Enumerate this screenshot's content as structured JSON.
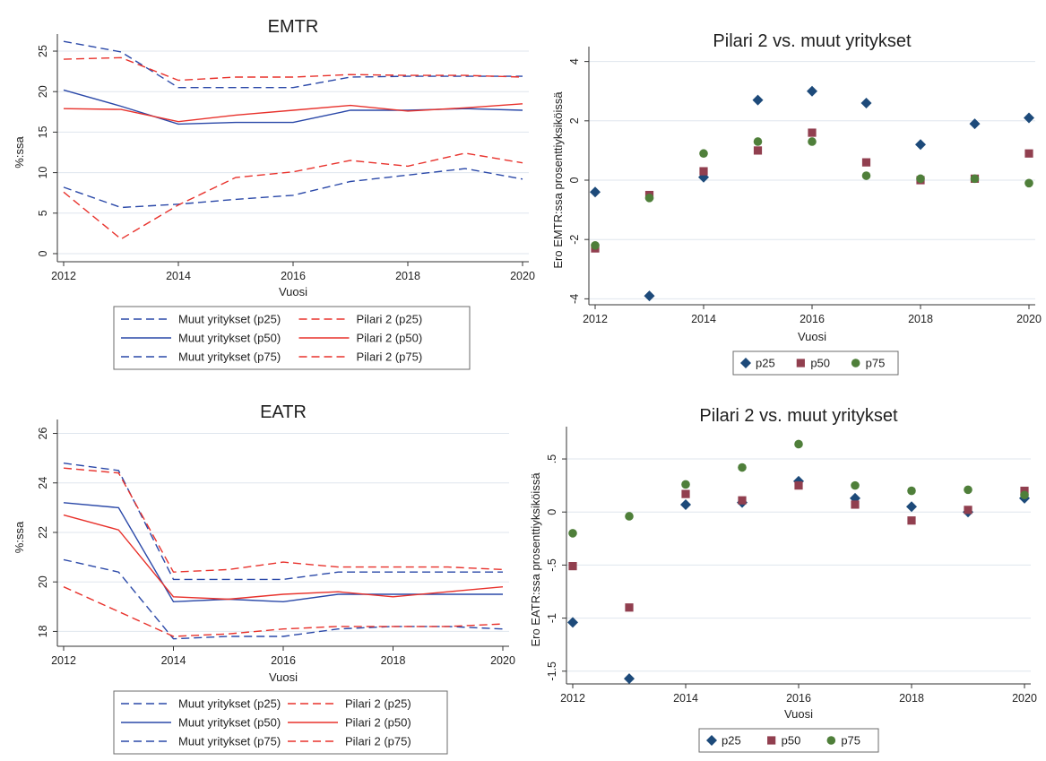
{
  "chart_data": [
    {
      "type": "line",
      "title": "EMTR",
      "xlabel": "Vuosi",
      "ylabel": "%:ssa",
      "xlim": [
        2012,
        2020
      ],
      "ylim": [
        -1,
        26
      ],
      "xticks": [
        2012,
        2014,
        2016,
        2018,
        2020
      ],
      "yticks": [
        0,
        5,
        10,
        15,
        20,
        25
      ],
      "grid": true,
      "legend_position": "bottom",
      "x": [
        2012,
        2013,
        2014,
        2015,
        2016,
        2017,
        2018,
        2019,
        2020
      ],
      "series": [
        {
          "name": "Muut yritykset (p25)",
          "color": "#2a48a8",
          "style": "dashed",
          "values": [
            8.2,
            5.7,
            6.1,
            6.7,
            7.2,
            8.9,
            9.7,
            10.5,
            9.2
          ]
        },
        {
          "name": "Pilari 2 (p25)",
          "color": "#e8322c",
          "style": "dashed",
          "values": [
            7.6,
            1.8,
            6.0,
            9.4,
            10.1,
            11.5,
            10.8,
            12.4,
            11.2
          ]
        },
        {
          "name": "Muut yritykset (p50)",
          "color": "#2a48a8",
          "style": "solid",
          "values": [
            20.2,
            18.2,
            16.0,
            16.2,
            16.2,
            17.7,
            17.7,
            17.9,
            17.7
          ]
        },
        {
          "name": "Pilari 2 (p50)",
          "color": "#e8322c",
          "style": "solid",
          "values": [
            17.9,
            17.8,
            16.3,
            17.1,
            17.7,
            18.3,
            17.6,
            18.0,
            18.5
          ]
        },
        {
          "name": "Muut yritykset (p75)",
          "color": "#2a48a8",
          "style": "dashed",
          "values": [
            26.2,
            24.9,
            20.5,
            20.5,
            20.5,
            21.8,
            21.9,
            21.9,
            21.9
          ]
        },
        {
          "name": "Pilari 2 (p75)",
          "color": "#e8322c",
          "style": "dashed",
          "values": [
            24.0,
            24.2,
            21.4,
            21.8,
            21.8,
            22.1,
            22.0,
            22.0,
            21.8
          ]
        }
      ]
    },
    {
      "type": "scatter",
      "title": "Pilari 2 vs. muut yritykset",
      "xlabel": "Vuosi",
      "ylabel": "Ero EMTR:ssa prosenttiyksiköissä",
      "xlim": [
        2012,
        2020
      ],
      "ylim": [
        -4.2,
        4.2
      ],
      "xticks": [
        2012,
        2014,
        2016,
        2018,
        2020
      ],
      "yticks": [
        -4,
        -2,
        0,
        2,
        4
      ],
      "grid": true,
      "legend_position": "bottom",
      "x": [
        2012,
        2013,
        2014,
        2015,
        2016,
        2017,
        2018,
        2019,
        2020
      ],
      "series": [
        {
          "name": "p25",
          "marker": "diamond",
          "color": "#1d4a7a",
          "values": [
            -0.4,
            -3.9,
            0.1,
            2.7,
            3.0,
            2.6,
            1.2,
            1.9,
            2.1
          ]
        },
        {
          "name": "p50",
          "marker": "square",
          "color": "#913f4f",
          "values": [
            -2.3,
            -0.5,
            0.3,
            1.0,
            1.6,
            0.6,
            0.0,
            0.05,
            0.9
          ]
        },
        {
          "name": "p75",
          "marker": "circle",
          "color": "#4f7f3a",
          "values": [
            -2.2,
            -0.6,
            0.9,
            1.3,
            1.3,
            0.15,
            0.05,
            0.05,
            -0.1
          ]
        }
      ]
    },
    {
      "type": "line",
      "title": "EATR",
      "xlabel": "Vuosi",
      "ylabel": "%:ssa",
      "xlim": [
        2012,
        2020
      ],
      "ylim": [
        17.4,
        26.2
      ],
      "xticks": [
        2012,
        2014,
        2016,
        2018,
        2020
      ],
      "yticks": [
        18,
        20,
        22,
        24,
        26
      ],
      "grid": true,
      "legend_position": "bottom",
      "x": [
        2012,
        2013,
        2014,
        2015,
        2016,
        2017,
        2018,
        2019,
        2020
      ],
      "series": [
        {
          "name": "Muut yritykset (p25)",
          "color": "#2a48a8",
          "style": "dashed",
          "values": [
            20.9,
            20.4,
            17.7,
            17.8,
            17.8,
            18.1,
            18.2,
            18.2,
            18.1
          ]
        },
        {
          "name": "Pilari 2 (p25)",
          "color": "#e8322c",
          "style": "dashed",
          "values": [
            19.8,
            18.8,
            17.8,
            17.9,
            18.1,
            18.2,
            18.2,
            18.2,
            18.3
          ]
        },
        {
          "name": "Muut yritykset (p50)",
          "color": "#2a48a8",
          "style": "solid",
          "values": [
            23.2,
            23.0,
            19.2,
            19.3,
            19.2,
            19.5,
            19.5,
            19.5,
            19.5
          ]
        },
        {
          "name": "Pilari 2 (p50)",
          "color": "#e8322c",
          "style": "solid",
          "values": [
            22.7,
            22.1,
            19.4,
            19.3,
            19.5,
            19.6,
            19.4,
            19.6,
            19.8
          ]
        },
        {
          "name": "Muut yritykset (p75)",
          "color": "#2a48a8",
          "style": "dashed",
          "values": [
            24.8,
            24.5,
            20.1,
            20.1,
            20.1,
            20.4,
            20.4,
            20.4,
            20.4
          ]
        },
        {
          "name": "Pilari 2 (p75)",
          "color": "#e8322c",
          "style": "dashed",
          "values": [
            24.6,
            24.4,
            20.4,
            20.5,
            20.8,
            20.6,
            20.6,
            20.6,
            20.5
          ]
        }
      ]
    },
    {
      "type": "scatter",
      "title": "Pilari 2 vs. muut yritykset",
      "xlabel": "Vuosi",
      "ylabel": "Ero EATR:ssa prosenttiyksiköissä",
      "xlim": [
        2012,
        2020
      ],
      "ylim": [
        -1.62,
        0.72
      ],
      "xticks": [
        2012,
        2014,
        2016,
        2018,
        2020
      ],
      "yticks": [
        -1.5,
        -1,
        -0.5,
        0,
        0.5
      ],
      "ytick_labels": [
        "-1.5",
        "-1",
        "-.5",
        "0",
        ".5"
      ],
      "grid": true,
      "legend_position": "bottom",
      "x": [
        2012,
        2013,
        2014,
        2015,
        2016,
        2017,
        2018,
        2019,
        2020
      ],
      "series": [
        {
          "name": "p25",
          "marker": "diamond",
          "color": "#1d4a7a",
          "values": [
            -1.04,
            -1.57,
            0.07,
            0.09,
            0.29,
            0.13,
            0.05,
            0.0,
            0.13
          ]
        },
        {
          "name": "p50",
          "marker": "square",
          "color": "#913f4f",
          "values": [
            -0.51,
            -0.9,
            0.17,
            0.11,
            0.25,
            0.07,
            -0.08,
            0.02,
            0.2
          ]
        },
        {
          "name": "p75",
          "marker": "circle",
          "color": "#4f7f3a",
          "values": [
            -0.2,
            -0.04,
            0.26,
            0.42,
            0.64,
            0.25,
            0.2,
            0.21,
            0.16
          ]
        }
      ]
    }
  ]
}
